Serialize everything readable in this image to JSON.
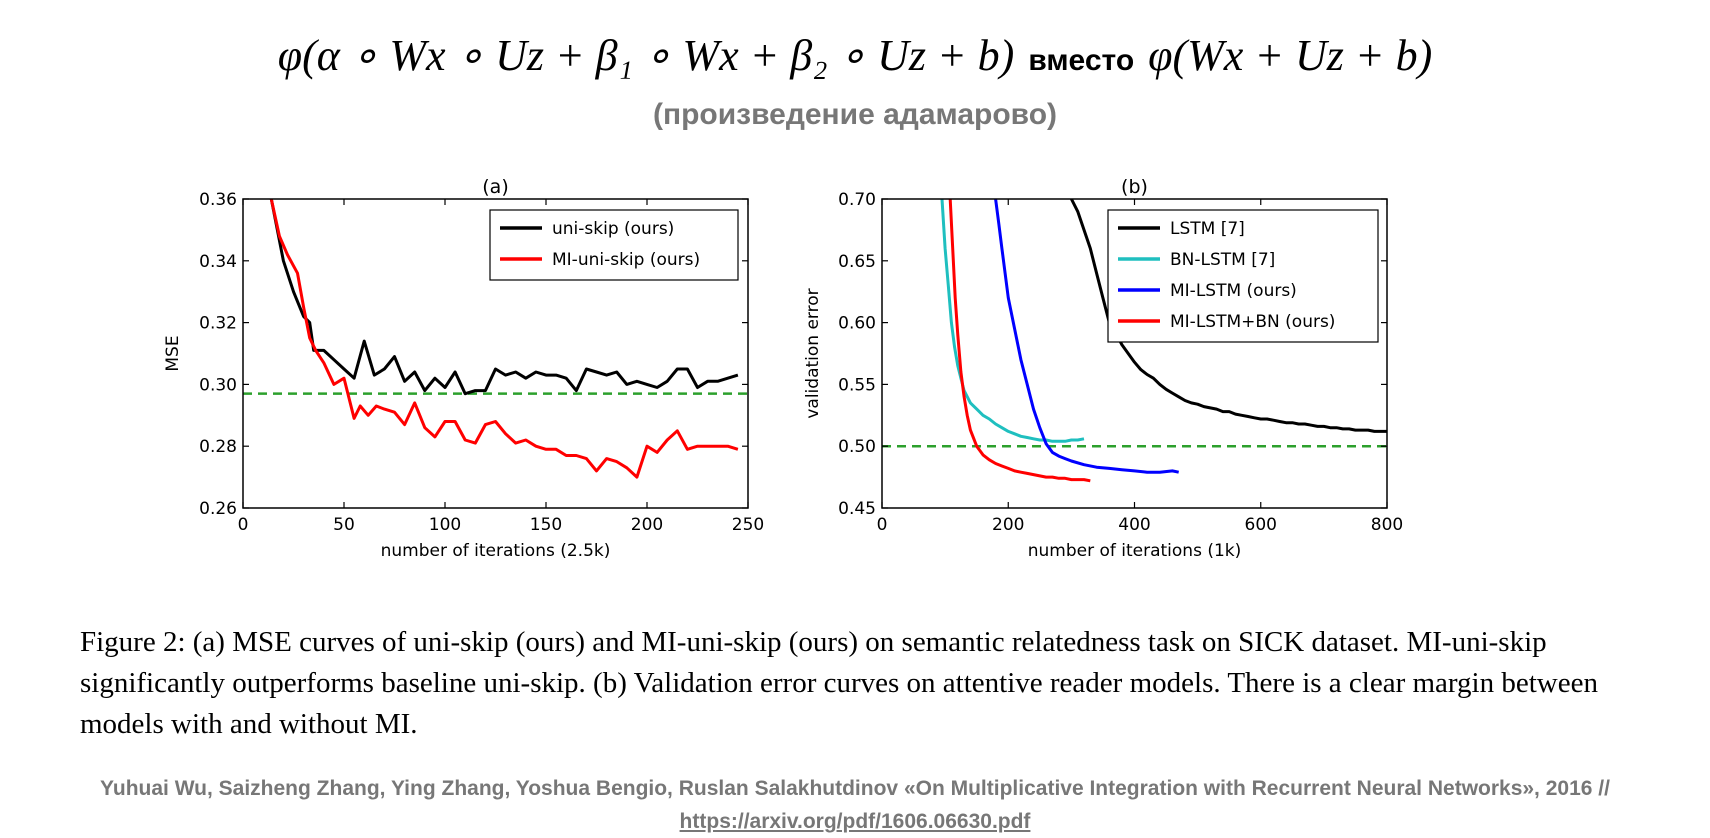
{
  "slide": {
    "formula_left": "φ(α ∘ Wx ∘ Uz + β₁ ∘ Wx + β₂ ∘ Uz + b)",
    "formula_word": "вместо",
    "formula_right": "φ(Wx + Uz + b)",
    "subtitle": "(произведение адамарово)",
    "caption": "Figure 2: (a) MSE curves of uni-skip (ours) and MI-uni-skip (ours) on semantic relatedness task on SICK dataset. MI-uni-skip significantly outperforms baseline uni-skip. (b) Validation error curves on attentive reader models. There is a clear margin between models with and without MI.",
    "credit_text": "Yuhuai Wu, Saizheng Zhang, Ying Zhang, Yoshua Bengio, Ruslan Salakhutdinov «On Multiplicative Integration with Recurrent Neural Networks», 2016 // ",
    "credit_link": "https://arxiv.org/pdf/1606.06630.pdf"
  },
  "chart_data": [
    {
      "type": "line",
      "title": "(a)",
      "xlabel": "number of iterations (2.5k)",
      "ylabel": "MSE",
      "xlim": [
        0,
        250
      ],
      "ylim": [
        0.26,
        0.36
      ],
      "xticks": [
        "0",
        "50",
        "100",
        "150",
        "200",
        "250"
      ],
      "yticks": [
        "0.26",
        "0.28",
        "0.30",
        "0.32",
        "0.34",
        "0.36"
      ],
      "legend_position": "top-right",
      "grid": false,
      "reference_line": {
        "y": 0.297,
        "color": "#2ca02c",
        "style": "dashed"
      },
      "series": [
        {
          "name": "uni-skip (ours)",
          "color": "#000000",
          "x": [
            14,
            20,
            25,
            30,
            33,
            35,
            40,
            45,
            50,
            55,
            60,
            65,
            70,
            75,
            80,
            85,
            90,
            95,
            100,
            105,
            110,
            115,
            120,
            125,
            130,
            135,
            140,
            145,
            150,
            155,
            160,
            165,
            170,
            175,
            180,
            185,
            190,
            195,
            200,
            205,
            210,
            215,
            220,
            225,
            230,
            235,
            240,
            245
          ],
          "y": [
            0.36,
            0.34,
            0.33,
            0.322,
            0.32,
            0.311,
            0.311,
            0.308,
            0.305,
            0.302,
            0.314,
            0.303,
            0.305,
            0.309,
            0.301,
            0.304,
            0.298,
            0.302,
            0.299,
            0.304,
            0.297,
            0.298,
            0.298,
            0.305,
            0.303,
            0.304,
            0.302,
            0.304,
            0.303,
            0.303,
            0.302,
            0.298,
            0.305,
            0.304,
            0.303,
            0.304,
            0.3,
            0.301,
            0.3,
            0.299,
            0.301,
            0.305,
            0.305,
            0.299,
            0.301,
            0.301,
            0.302,
            0.303
          ]
        },
        {
          "name": "MI-uni-skip (ours)",
          "color": "#ff0000",
          "x": [
            14,
            18,
            22,
            27,
            30,
            33,
            36,
            40,
            45,
            50,
            55,
            58,
            62,
            66,
            70,
            75,
            80,
            85,
            90,
            95,
            100,
            105,
            110,
            115,
            120,
            125,
            130,
            135,
            140,
            145,
            150,
            155,
            160,
            165,
            170,
            175,
            180,
            185,
            190,
            195,
            200,
            205,
            210,
            215,
            220,
            225,
            230,
            235,
            240,
            245
          ],
          "y": [
            0.36,
            0.348,
            0.342,
            0.336,
            0.325,
            0.315,
            0.311,
            0.307,
            0.3,
            0.302,
            0.289,
            0.293,
            0.29,
            0.293,
            0.292,
            0.291,
            0.287,
            0.294,
            0.286,
            0.283,
            0.288,
            0.288,
            0.282,
            0.281,
            0.287,
            0.288,
            0.284,
            0.281,
            0.282,
            0.28,
            0.279,
            0.279,
            0.277,
            0.277,
            0.276,
            0.272,
            0.276,
            0.275,
            0.273,
            0.27,
            0.28,
            0.278,
            0.282,
            0.285,
            0.279,
            0.28,
            0.28,
            0.28,
            0.28,
            0.279
          ]
        }
      ]
    },
    {
      "type": "line",
      "title": "(b)",
      "xlabel": "number of iterations (1k)",
      "ylabel": "validation error",
      "xlim": [
        0,
        800
      ],
      "ylim": [
        0.45,
        0.7
      ],
      "xticks": [
        "0",
        "200",
        "400",
        "600",
        "800"
      ],
      "yticks": [
        "0.45",
        "0.50",
        "0.55",
        "0.60",
        "0.65",
        "0.70"
      ],
      "legend_position": "top-right",
      "grid": false,
      "reference_line": {
        "y": 0.5,
        "color": "#2ca02c",
        "style": "dashed"
      },
      "series": [
        {
          "name": "LSTM [7]",
          "color": "#000000",
          "x": [
            300,
            310,
            320,
            330,
            340,
            350,
            360,
            370,
            380,
            390,
            400,
            410,
            420,
            430,
            440,
            450,
            460,
            470,
            480,
            490,
            500,
            510,
            520,
            530,
            540,
            550,
            560,
            570,
            580,
            590,
            600,
            610,
            620,
            630,
            640,
            650,
            660,
            670,
            680,
            690,
            700,
            710,
            720,
            730,
            740,
            750,
            760,
            770,
            780,
            790,
            800
          ],
          "y": [
            0.7,
            0.69,
            0.675,
            0.66,
            0.64,
            0.62,
            0.6,
            0.592,
            0.582,
            0.575,
            0.568,
            0.562,
            0.558,
            0.555,
            0.55,
            0.546,
            0.543,
            0.54,
            0.537,
            0.535,
            0.534,
            0.532,
            0.531,
            0.53,
            0.528,
            0.528,
            0.526,
            0.525,
            0.524,
            0.523,
            0.522,
            0.522,
            0.521,
            0.52,
            0.519,
            0.519,
            0.518,
            0.518,
            0.517,
            0.516,
            0.516,
            0.515,
            0.515,
            0.514,
            0.514,
            0.513,
            0.513,
            0.513,
            0.512,
            0.512,
            0.512
          ]
        },
        {
          "name": "BN-LSTM [7]",
          "color": "#1fbfbf",
          "x": [
            95,
            100,
            105,
            110,
            115,
            120,
            125,
            130,
            140,
            150,
            160,
            170,
            180,
            190,
            200,
            210,
            220,
            230,
            240,
            250,
            260,
            270,
            280,
            290,
            300,
            310,
            320
          ],
          "y": [
            0.7,
            0.66,
            0.63,
            0.6,
            0.58,
            0.565,
            0.555,
            0.545,
            0.535,
            0.53,
            0.525,
            0.522,
            0.518,
            0.515,
            0.512,
            0.51,
            0.508,
            0.507,
            0.506,
            0.505,
            0.505,
            0.504,
            0.504,
            0.504,
            0.505,
            0.505,
            0.506
          ]
        },
        {
          "name": "MI-LSTM (ours)",
          "color": "#0000ff",
          "x": [
            180,
            185,
            190,
            195,
            200,
            210,
            220,
            230,
            240,
            250,
            260,
            270,
            280,
            290,
            300,
            320,
            340,
            360,
            380,
            400,
            420,
            440,
            460,
            470
          ],
          "y": [
            0.7,
            0.68,
            0.66,
            0.64,
            0.62,
            0.595,
            0.57,
            0.55,
            0.53,
            0.515,
            0.502,
            0.495,
            0.492,
            0.49,
            0.488,
            0.485,
            0.483,
            0.482,
            0.481,
            0.48,
            0.479,
            0.479,
            0.48,
            0.479
          ]
        },
        {
          "name": "MI-LSTM+BN (ours)",
          "color": "#ff0000",
          "x": [
            108,
            112,
            116,
            120,
            125,
            130,
            135,
            140,
            150,
            160,
            170,
            180,
            190,
            200,
            210,
            220,
            230,
            240,
            250,
            260,
            270,
            280,
            290,
            300,
            310,
            320,
            330
          ],
          "y": [
            0.7,
            0.66,
            0.62,
            0.59,
            0.56,
            0.54,
            0.525,
            0.513,
            0.5,
            0.493,
            0.489,
            0.486,
            0.484,
            0.482,
            0.48,
            0.479,
            0.478,
            0.477,
            0.476,
            0.475,
            0.475,
            0.474,
            0.474,
            0.473,
            0.473,
            0.473,
            0.472
          ]
        }
      ]
    }
  ]
}
